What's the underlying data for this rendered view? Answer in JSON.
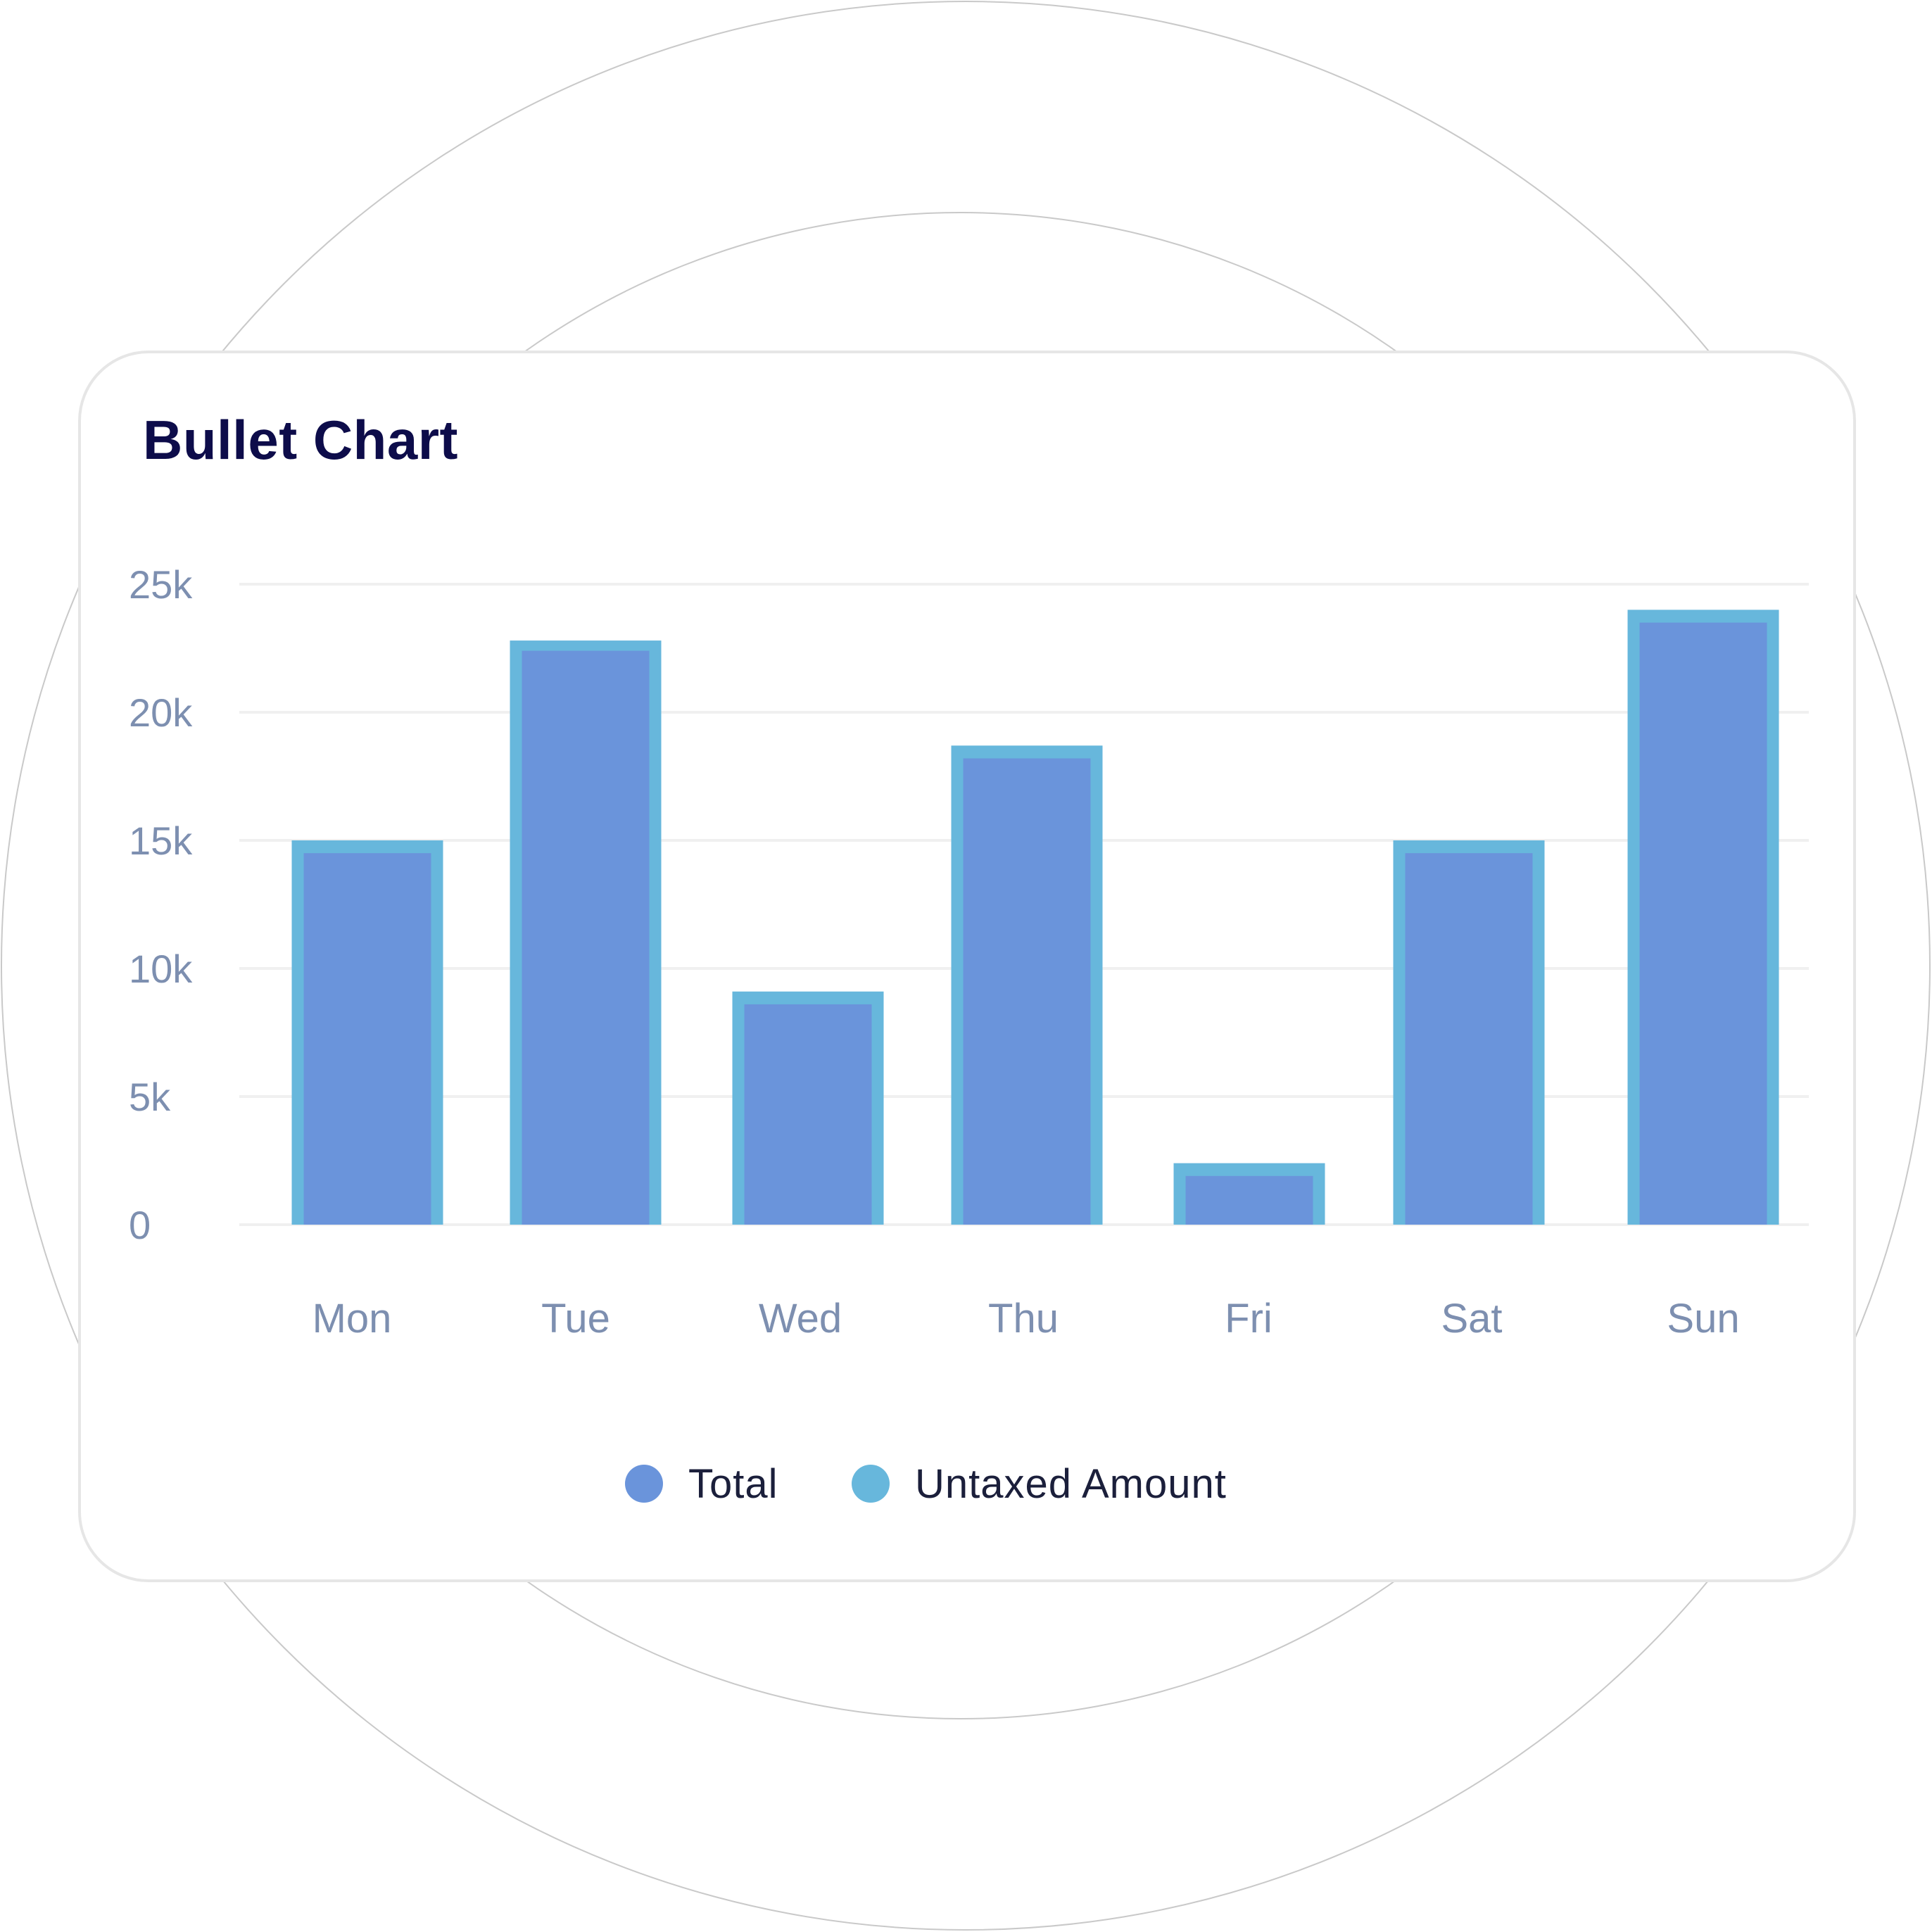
{
  "card": {
    "title": "Bullet Chart"
  },
  "colors": {
    "total": "#6a94db",
    "untaxed": "#67b7dc",
    "axis_text": "#7d8fb0",
    "grid": "#f0f0f0",
    "title": "#0d0c4a",
    "legend_text": "#1b1f3b",
    "ring": "#c9c9c9"
  },
  "legend": {
    "items": [
      {
        "label": "Total",
        "color": "#6a94db"
      },
      {
        "label": "Untaxed Amount",
        "color": "#67b7dc"
      }
    ]
  },
  "chart_data": {
    "type": "bar",
    "title": "Bullet Chart",
    "categories": [
      "Mon",
      "Tue",
      "Wed",
      "Thu",
      "Fri",
      "Sat",
      "Sun"
    ],
    "series": [
      {
        "name": "Untaxed Amount",
        "values": [
          15000,
          22800,
          9100,
          18700,
          2400,
          15000,
          24000
        ]
      },
      {
        "name": "Total",
        "values": [
          14500,
          22400,
          8600,
          18200,
          1900,
          14500,
          23500
        ]
      }
    ],
    "y_ticks": [
      "0",
      "5k",
      "10k",
      "15k",
      "20k",
      "25k"
    ],
    "ylim": [
      0,
      25000
    ],
    "grid": true,
    "legend_position": "bottom"
  }
}
